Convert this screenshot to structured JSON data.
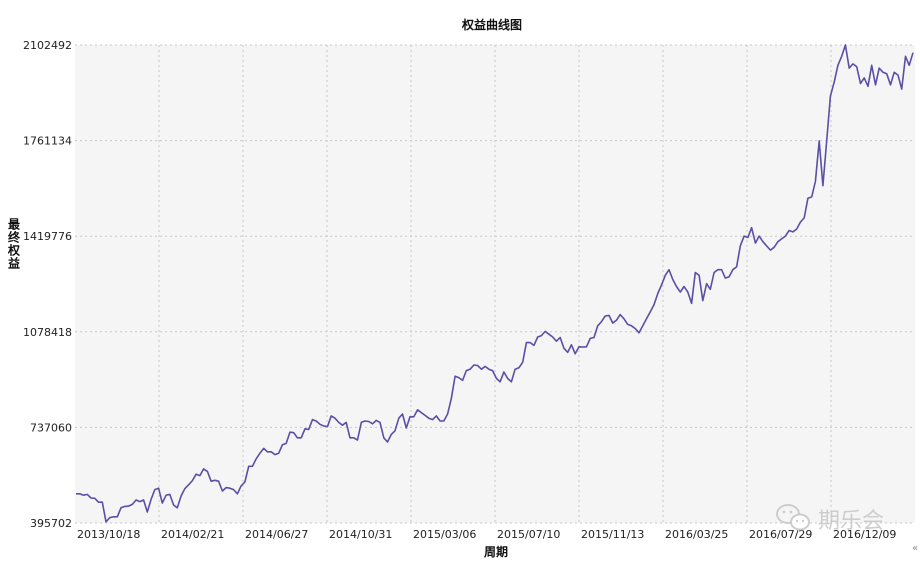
{
  "chart_data": {
    "type": "line",
    "title": "权益曲线图",
    "xlabel": "周期",
    "ylabel": "最终权益",
    "ylim": [
      395702,
      2102492
    ],
    "y_ticks": [
      "395702",
      "737060",
      "1078418",
      "1419776",
      "1761134",
      "2102492"
    ],
    "y_tick_values": [
      395702,
      737060,
      1078418,
      1419776,
      1761134,
      2102492
    ],
    "x_tick_labels": [
      "2013/10/18",
      "2014/02/21",
      "2014/06/27",
      "2014/10/31",
      "2015/03/06",
      "2015/07/10",
      "2015/11/13",
      "2016/03/25",
      "2016/07/29",
      "2016/12/09"
    ],
    "grid": true,
    "series": [
      {
        "values": [
          500000,
          500000,
          495000,
          498000,
          485000,
          484000,
          470000,
          470000,
          400000,
          415000,
          418000,
          418000,
          450000,
          455000,
          456000,
          462000,
          478000,
          472000,
          478000,
          435000,
          480000,
          515000,
          520000,
          467000,
          495000,
          498000,
          460000,
          450000,
          492000,
          518000,
          532000,
          547000,
          570000,
          565000,
          589000,
          580000,
          545000,
          548000,
          545000,
          510000,
          522000,
          520000,
          515000,
          500000,
          528000,
          542000,
          598000,
          598000,
          625000,
          645000,
          662000,
          650000,
          650000,
          640000,
          645000,
          675000,
          680000,
          720000,
          718000,
          700000,
          700000,
          732000,
          730000,
          765000,
          760000,
          748000,
          742000,
          740000,
          778000,
          770000,
          755000,
          745000,
          755000,
          700000,
          700000,
          692000,
          755000,
          760000,
          758000,
          750000,
          762000,
          755000,
          700000,
          685000,
          712000,
          725000,
          770000,
          785000,
          735000,
          775000,
          775000,
          800000,
          790000,
          780000,
          770000,
          765000,
          778000,
          760000,
          760000,
          785000,
          840000,
          920000,
          915000,
          905000,
          940000,
          945000,
          960000,
          958000,
          945000,
          955000,
          945000,
          940000,
          912000,
          900000,
          935000,
          912000,
          900000,
          945000,
          950000,
          970000,
          1040000,
          1040000,
          1030000,
          1060000,
          1065000,
          1080000,
          1070000,
          1060000,
          1045000,
          1058000,
          1020000,
          1005000,
          1032000,
          1000000,
          1025000,
          1024000,
          1025000,
          1055000,
          1058000,
          1100000,
          1115000,
          1135000,
          1137000,
          1110000,
          1120000,
          1140000,
          1125000,
          1105000,
          1100000,
          1090000,
          1075000,
          1100000,
          1125000,
          1150000,
          1175000,
          1215000,
          1245000,
          1280000,
          1300000,
          1265000,
          1240000,
          1220000,
          1240000,
          1220000,
          1180000,
          1290000,
          1280000,
          1190000,
          1250000,
          1230000,
          1290000,
          1300000,
          1300000,
          1270000,
          1275000,
          1300000,
          1310000,
          1385000,
          1420000,
          1415000,
          1450000,
          1395000,
          1420000,
          1400000,
          1385000,
          1370000,
          1380000,
          1400000,
          1410000,
          1420000,
          1440000,
          1435000,
          1445000,
          1470000,
          1485000,
          1555000,
          1560000,
          1615000,
          1760000,
          1600000,
          1760000,
          1920000,
          1970000,
          2030000,
          2062000,
          2102492,
          2020000,
          2035000,
          2025000,
          1965000,
          1985000,
          1955000,
          2030000,
          1960000,
          2020000,
          2005000,
          2000000,
          1960000,
          2005000,
          1995000,
          1945000,
          2062000,
          2030000,
          2075000
        ]
      }
    ]
  },
  "colors": {
    "line": "#5a4fa5",
    "plot_bg": "#f5f5f5",
    "grid": "#c8c8c8"
  },
  "watermark": {
    "text": "期乐会",
    "icon": "wechat-icon"
  },
  "corner_mark": "«"
}
